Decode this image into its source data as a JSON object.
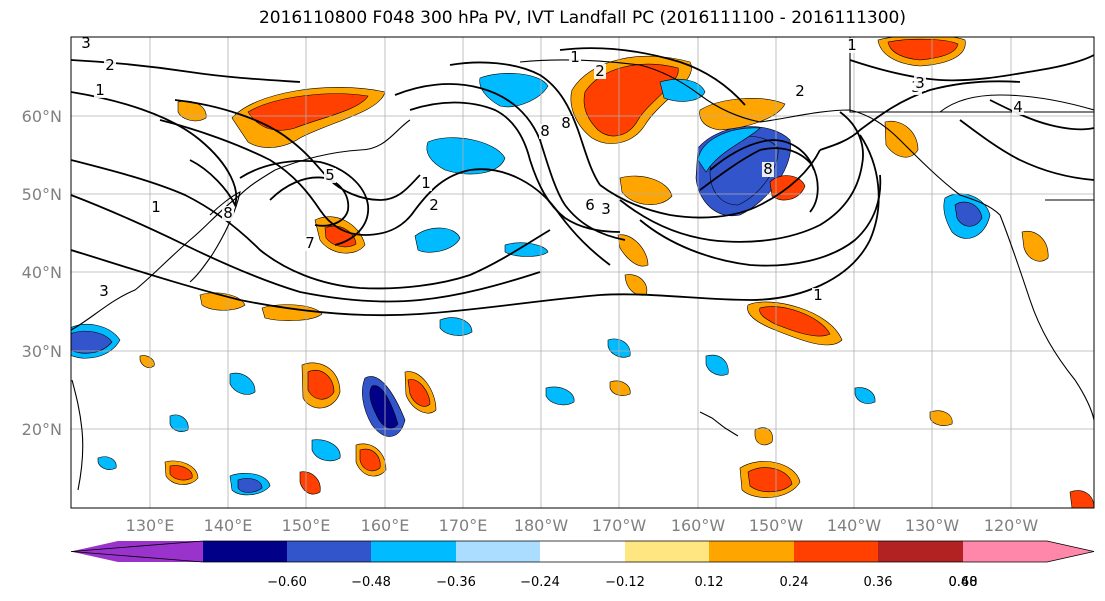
{
  "title": "2016110800 F048 300 hPa PV, IVT Landfall PC (2016111100 - 2016111300)",
  "lat_labels": [
    "60°N",
    "50°N",
    "40°N",
    "30°N",
    "20°N"
  ],
  "lon_labels": [
    "130°E",
    "140°E",
    "150°E",
    "160°E",
    "170°E",
    "180°W",
    "170°W",
    "160°W",
    "150°W",
    "140°W",
    "130°W",
    "120°W"
  ],
  "colorbar": {
    "tick_labels": [
      "−0.60",
      "−0.48",
      "−0.36",
      "−0.24",
      "−0.12",
      "0.12",
      "0.24",
      "0.36",
      "0.48",
      "0.60"
    ],
    "colors": [
      "#9933cc",
      "#000088",
      "#3355cc",
      "#00bbff",
      "#aaddff",
      "#ffffff",
      "#ffe680",
      "#ffa500",
      "#ff4000",
      "#b22222",
      "#ff88aa"
    ]
  },
  "contour_labels": [
    "3",
    "2",
    "1",
    "3",
    "8",
    "5",
    "1",
    "2",
    "7",
    "2",
    "1",
    "1",
    "8",
    "8",
    "6",
    "3",
    "8",
    "3",
    "2",
    "3",
    "4",
    "1",
    "1"
  ],
  "colors": {
    "land_outline": "#000000",
    "grid": "#b0b0b0",
    "tick_label": "#808080"
  }
}
